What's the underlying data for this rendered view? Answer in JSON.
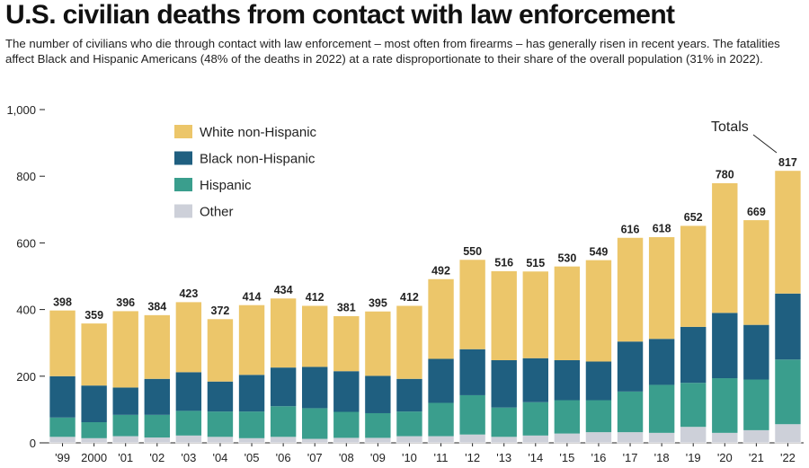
{
  "chart_data": {
    "type": "bar",
    "stacked": true,
    "title": "U.S. civilian deaths from contact with law enforcement",
    "subtitle": "The number of civilians who die through contact with law enforcement – most often from firearms – has generally risen in recent years. The fatalities affect Black and Hispanic Americans (48% of the deaths in 2022) at a rate disproportionate to their share of the overall population (31% in 2022).",
    "categories": [
      "'99",
      "2000",
      "'01",
      "'02",
      "'03",
      "'04",
      "'05",
      "'06",
      "'07",
      "'08",
      "'09",
      "'10",
      "'11",
      "'12",
      "'13",
      "'14",
      "'15",
      "'16",
      "'17",
      "'18",
      "'19",
      "'20",
      "'21",
      "'22"
    ],
    "totals": [
      398,
      359,
      396,
      384,
      423,
      372,
      414,
      434,
      412,
      381,
      395,
      412,
      492,
      550,
      516,
      515,
      530,
      549,
      616,
      618,
      652,
      780,
      669,
      817
    ],
    "series": [
      {
        "name": "Other",
        "color": "#cdd0d9",
        "values": [
          18,
          14,
          20,
          16,
          22,
          18,
          14,
          18,
          12,
          15,
          15,
          20,
          20,
          25,
          18,
          22,
          28,
          32,
          32,
          30,
          48,
          30,
          38,
          56
        ]
      },
      {
        "name": "Hispanic",
        "color": "#3a9e8d",
        "values": [
          58,
          48,
          64,
          68,
          74,
          76,
          80,
          92,
          92,
          78,
          74,
          74,
          100,
          118,
          88,
          100,
          100,
          96,
          122,
          144,
          132,
          164,
          152,
          194
        ]
      },
      {
        "name": "Black non-Hispanic",
        "color": "#1f5f80",
        "values": [
          124,
          110,
          82,
          108,
          116,
          90,
          110,
          116,
          124,
          122,
          112,
          98,
          132,
          138,
          142,
          132,
          120,
          116,
          150,
          138,
          168,
          196,
          164,
          198
        ]
      },
      {
        "name": "White non-Hispanic",
        "color": "#ecc66a",
        "values": [
          198,
          187,
          230,
          192,
          211,
          188,
          210,
          208,
          184,
          166,
          194,
          220,
          240,
          269,
          268,
          261,
          282,
          305,
          312,
          306,
          304,
          390,
          315,
          369
        ]
      }
    ],
    "legend_order": [
      "White non-Hispanic",
      "Black non-Hispanic",
      "Hispanic",
      "Other"
    ],
    "ylim": [
      0,
      1000
    ],
    "yticks": [
      0,
      200,
      400,
      600,
      800,
      1000
    ],
    "ytick_labels": [
      "0",
      "200",
      "400",
      "600",
      "800",
      "1,000"
    ],
    "annotation": "Totals",
    "legend_position": "top-left",
    "grid": false
  }
}
